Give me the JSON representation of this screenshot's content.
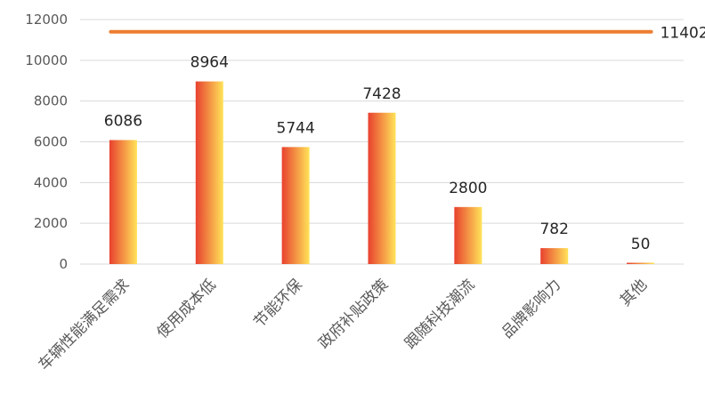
{
  "chart_data": {
    "type": "bar",
    "title": "",
    "xlabel": "",
    "ylabel": "",
    "categories": [
      "车辆性能满足需求",
      "使用成本低",
      "节能环保",
      "政府补贴政策",
      "跟随科技潮流",
      "品牌影响力",
      "其他"
    ],
    "values": [
      6086,
      8964,
      5744,
      7428,
      2800,
      782,
      50
    ],
    "data_labels": [
      "6086",
      "8964",
      "5744",
      "7428",
      "2800",
      "782",
      "50"
    ],
    "yticks": [
      0,
      2000,
      4000,
      6000,
      8000,
      10000,
      12000
    ],
    "ylim": [
      0,
      12000
    ],
    "grid": true,
    "reference_line": {
      "value": 11402,
      "label": "11402",
      "color": "#ed7d31"
    },
    "bar_gradient": {
      "from": "#e8412f",
      "to": "#ffe359"
    },
    "gridline_color": "#d9d9d9"
  }
}
